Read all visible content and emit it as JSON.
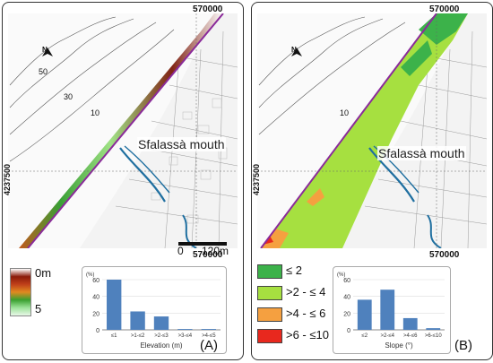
{
  "panel_a": {
    "easting_label": "570000",
    "easting_label_bottom": "570000",
    "northing_label": "4237500",
    "place_label": "Sfalassà mouth",
    "panel_letter": "(A)",
    "scale_bar": {
      "zero": "0",
      "distance": "120m"
    },
    "contour_labels": [
      "50",
      "30",
      "10"
    ],
    "north_label": "N",
    "legend": {
      "top_label": "0m",
      "bottom_label": "5",
      "gradient_colors": [
        "#ffffff",
        "#8b1a0a",
        "#c0401a",
        "#e08a20",
        "#3aa030",
        "#9ee39a",
        "#e8f7e8"
      ]
    }
  },
  "panel_b": {
    "easting_label": "570000",
    "easting_label_bottom": "570000",
    "northing_label": "4237500",
    "place_label": "Sfalassà mouth",
    "panel_letter": "(B)",
    "contour_labels": [
      "10"
    ],
    "north_label": "N",
    "legend": [
      {
        "label": "≤ 2",
        "color": "#3cb24a"
      },
      {
        "label": ">2 - ≤ 4",
        "color": "#a6e040"
      },
      {
        "label": ">4 - ≤ 6",
        "color": "#f5a040"
      },
      {
        "label": ">6 - ≤10",
        "color": "#e8281e"
      }
    ]
  },
  "chart_data": [
    {
      "type": "bar",
      "ylabel": "(%)",
      "xlabel": "Elevation (m)",
      "categories": [
        "≤1",
        ">1-≤2",
        ">2-≤3",
        ">3-≤4",
        ">4-≤5"
      ],
      "values": [
        60,
        22,
        16,
        1,
        1
      ],
      "ylim": [
        0,
        60
      ],
      "yticks": [
        "0",
        "20",
        "40",
        "60"
      ],
      "color": "#4f81bd"
    },
    {
      "type": "bar",
      "ylabel": "(%)",
      "xlabel": "Slope (°)",
      "categories": [
        "≤2",
        ">2-≤4",
        ">4-≤6",
        ">6-≤10"
      ],
      "values": [
        36,
        48,
        14,
        2
      ],
      "ylim": [
        0,
        60
      ],
      "yticks": [
        "0",
        "20",
        "40",
        "60"
      ],
      "color": "#4f81bd"
    }
  ]
}
